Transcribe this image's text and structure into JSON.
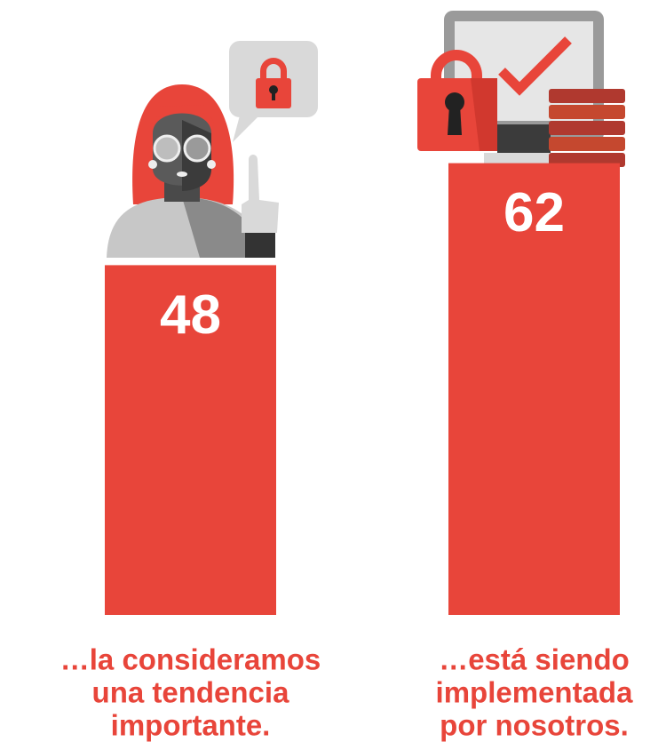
{
  "chart_data": {
    "type": "bar",
    "categories": [
      [
        "…la consideramos",
        "una tendencia",
        "importante."
      ],
      [
        "…está siendo",
        "implementada",
        "por nosotros."
      ]
    ],
    "values": [
      48,
      62
    ],
    "color": "#e8453a"
  }
}
